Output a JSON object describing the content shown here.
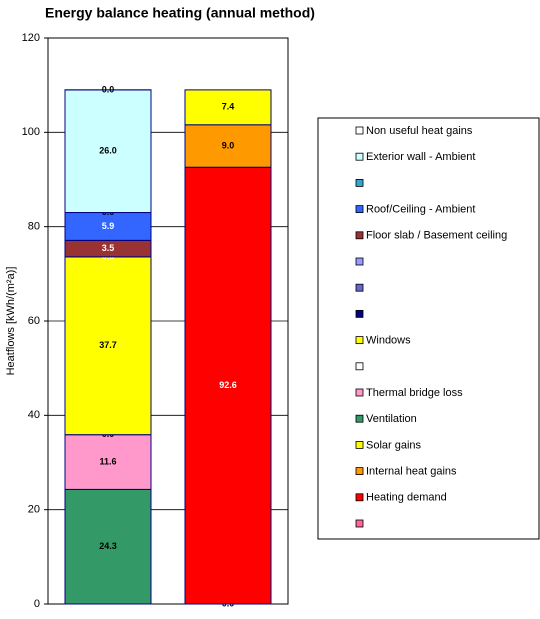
{
  "chart_data": {
    "type": "stacked_bar",
    "title": "Energy balance heating (annual method)",
    "y_label": "Heatflows [kWh/(m²a)]",
    "categories": [
      null,
      null
    ],
    "ylim": [
      0,
      120
    ],
    "yticks": [
      0,
      20,
      40,
      60,
      80,
      100,
      120
    ],
    "grid": true,
    "legend": "right",
    "series": [
      {
        "name": "Non useful heat gains",
        "color": "#ffffff",
        "values": [
          0.0,
          null
        ],
        "value_labels": [
          "0.0",
          null
        ]
      },
      {
        "name": "Exterior wall - Ambient",
        "color": "#ccffff",
        "values": [
          26.0,
          null
        ],
        "value_labels": [
          "26.0",
          null
        ]
      },
      {
        "color": "#33a6cc",
        "values": [
          0.0,
          null
        ],
        "value_labels": [
          "0.0",
          null
        ]
      },
      {
        "name": "Roof/Ceiling - Ambient",
        "color": "#3366ff",
        "values": [
          5.9,
          null
        ],
        "value_labels": [
          "5.9",
          null
        ]
      },
      {
        "name": "Floor slab / Basement ceiling",
        "color": "#993333",
        "values": [
          3.5,
          null
        ],
        "value_labels": [
          "3.5",
          null
        ]
      },
      {
        "color": "#9999ff",
        "values": [
          null,
          null
        ],
        "value_labels": [
          null,
          null
        ]
      },
      {
        "color": "#6666cc",
        "values": [
          null,
          null
        ],
        "value_labels": [
          null,
          null
        ]
      },
      {
        "color": "#000080",
        "values": [
          0.0,
          null
        ],
        "value_labels": [
          "0.0",
          null
        ]
      },
      {
        "name": "Windows",
        "color": "#ffff00",
        "values": [
          37.7,
          null
        ],
        "value_labels": [
          "37.7",
          null
        ]
      },
      {
        "color": "#ffffff",
        "values": [
          0.0,
          null
        ],
        "value_labels": [
          "0.0",
          null
        ]
      },
      {
        "name": "Thermal bridge loss",
        "color": "#ff99cc",
        "values": [
          11.6,
          null
        ],
        "value_labels": [
          "11.6",
          null
        ]
      },
      {
        "name": "Ventilation",
        "color": "#339966",
        "values": [
          24.3,
          null
        ],
        "value_labels": [
          "24.3",
          null
        ]
      },
      {
        "name": "Solar gains",
        "color": "#ffff00",
        "values": [
          null,
          7.4
        ],
        "value_labels": [
          null,
          "7.4"
        ]
      },
      {
        "name": "Internal heat gains",
        "color": "#ff9900",
        "values": [
          null,
          9.0
        ],
        "value_labels": [
          null,
          "9.0"
        ]
      },
      {
        "name": "Heating demand",
        "color": "#ff0000",
        "values": [
          null,
          92.6
        ],
        "value_labels": [
          null,
          "92.6"
        ]
      },
      {
        "color": "#ff6699",
        "values": [
          null,
          0.0
        ],
        "value_labels": [
          null,
          "0.0"
        ]
      }
    ]
  }
}
